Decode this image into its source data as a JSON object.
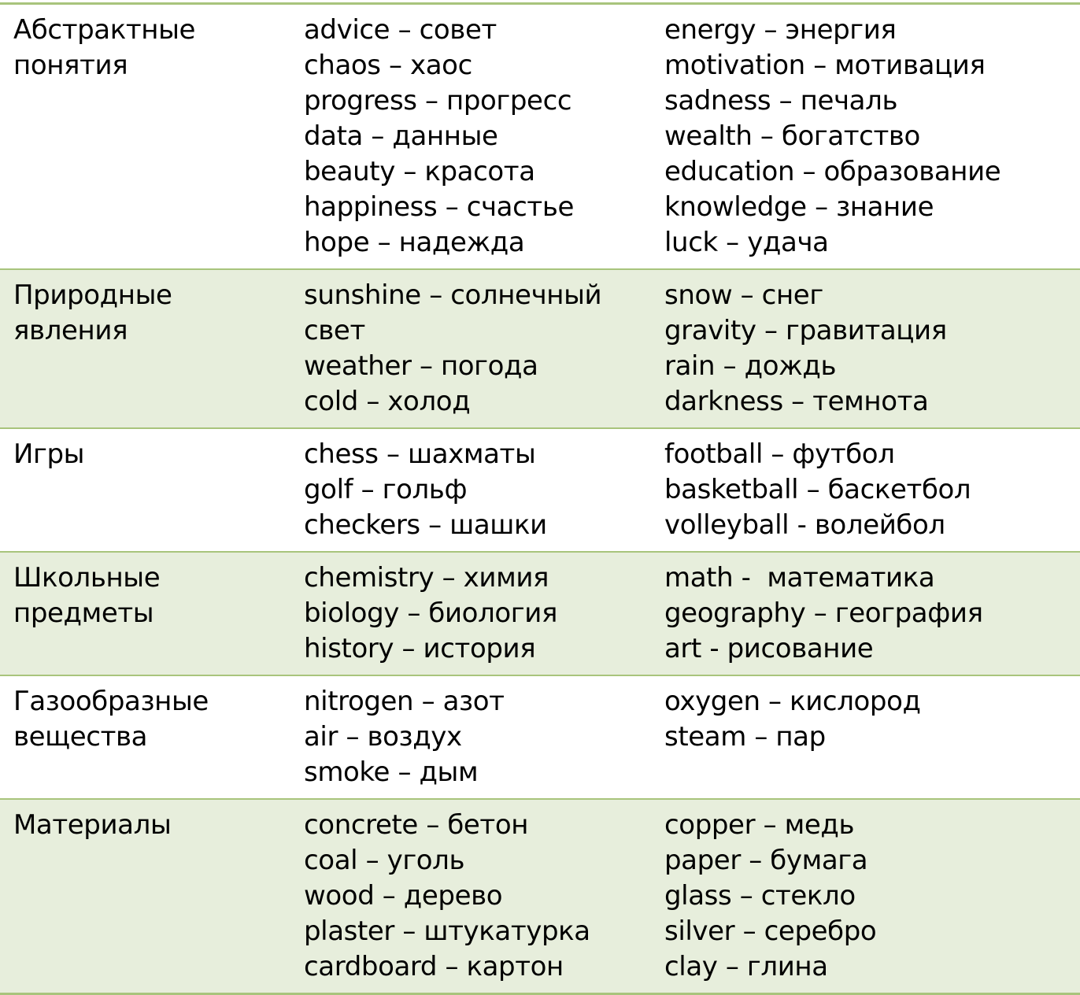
{
  "colors": {
    "border": "#a8c47c",
    "shaded_row": "#e7eedc",
    "plain_row": "#ffffff"
  },
  "rows": [
    {
      "category": [
        "Абстрактные",
        "понятия"
      ],
      "col1": [
        "advice – совет",
        "chaos – хаос",
        "progress – прогресс",
        "data – данные",
        "beauty – красота",
        "happiness – счастье",
        "hope – надежда"
      ],
      "col2": [
        "energy – энергия",
        "motivation – мотивация",
        "sadness – печаль",
        "wealth – богатство",
        "education – образование",
        "knowledge – знание",
        "luck – удача"
      ]
    },
    {
      "category": [
        "Природные",
        "явления"
      ],
      "col1": [
        "sunshine – солнечный",
        "свет",
        "weather – погода",
        "cold – холод"
      ],
      "col2": [
        "snow – снег",
        "gravity – гравитация",
        "rain – дождь",
        "darkness – темнота"
      ]
    },
    {
      "category": [
        "Игры"
      ],
      "col1": [
        "chess – шахматы",
        "golf – гольф",
        "checkers – шашки"
      ],
      "col2": [
        "football – футбол",
        "basketball – баскетбол",
        "volleyball - волейбол"
      ]
    },
    {
      "category": [
        "Школьные",
        "предметы"
      ],
      "col1": [
        "chemistry – химия",
        "biology – биология",
        "history – история"
      ],
      "col2": [
        "math -  математика",
        "geography – география",
        "art - рисование"
      ]
    },
    {
      "category": [
        "Газообразные",
        "вещества"
      ],
      "col1": [
        "nitrogen – азот",
        "air – воздух",
        "smoke – дым"
      ],
      "col2": [
        "oxygen – кислород",
        "steam – пар"
      ]
    },
    {
      "category": [
        "Материалы"
      ],
      "col1": [
        "concrete – бетон",
        "coal – уголь",
        "wood – дерево",
        "plaster – штукатурка",
        "cardboard – картон"
      ],
      "col2": [
        "copper – медь",
        "paper – бумага",
        "glass – стекло",
        "silver – серебро",
        "clay – глина"
      ]
    }
  ]
}
